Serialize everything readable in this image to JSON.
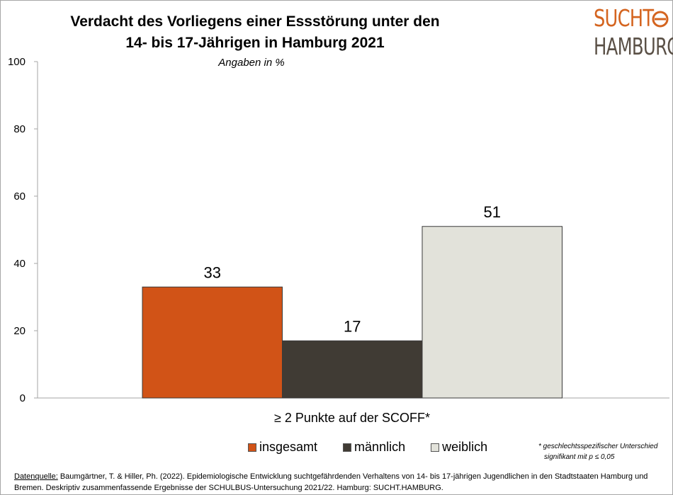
{
  "logo": {
    "line1": "SUCHT",
    "line2": "HAMBURG"
  },
  "chart_data": {
    "type": "bar",
    "title_line1": "Verdacht des Vorliegens einer Essstörung unter den",
    "title_line2": "14- bis 17-Jährigen in Hamburg 2021",
    "subtitle": "Angaben in %",
    "categories": [
      "≥ 2 Punkte auf der SCOFF*"
    ],
    "series": [
      {
        "name": "insgesamt",
        "values": [
          33
        ],
        "value_label": "33",
        "color": "#d15317"
      },
      {
        "name": "männlich",
        "values": [
          17
        ],
        "value_label": "17",
        "color": "#403b34"
      },
      {
        "name": "weiblich",
        "values": [
          51
        ],
        "value_label": "51",
        "color": "#e2e2da"
      }
    ],
    "ylim": [
      0,
      100
    ],
    "yticks": [
      0,
      20,
      40,
      60,
      80,
      100
    ],
    "ytick_labels": [
      "0",
      "20",
      "40",
      "60",
      "80",
      "100"
    ],
    "grid": false,
    "legend_position": "bottom"
  },
  "note": {
    "line1": "* geschlechtsspezifischer Unterschied",
    "line2": "signifikant mit p ≤ 0,05"
  },
  "source": {
    "label": "Datenquelle:",
    "text": " Baumgärtner, T. & Hiller, Ph. (2022). Epidemiologische Entwicklung suchtgefährdenden Verhaltens von 14- bis 17-jährigen Jugendlichen in den Stadtstaaten Hamburg und Bremen. Deskriptiv zusammenfassende Ergebnisse der SCHULBUS-Untersuchung 2021/22. Hamburg: SUCHT.HAMBURG."
  }
}
